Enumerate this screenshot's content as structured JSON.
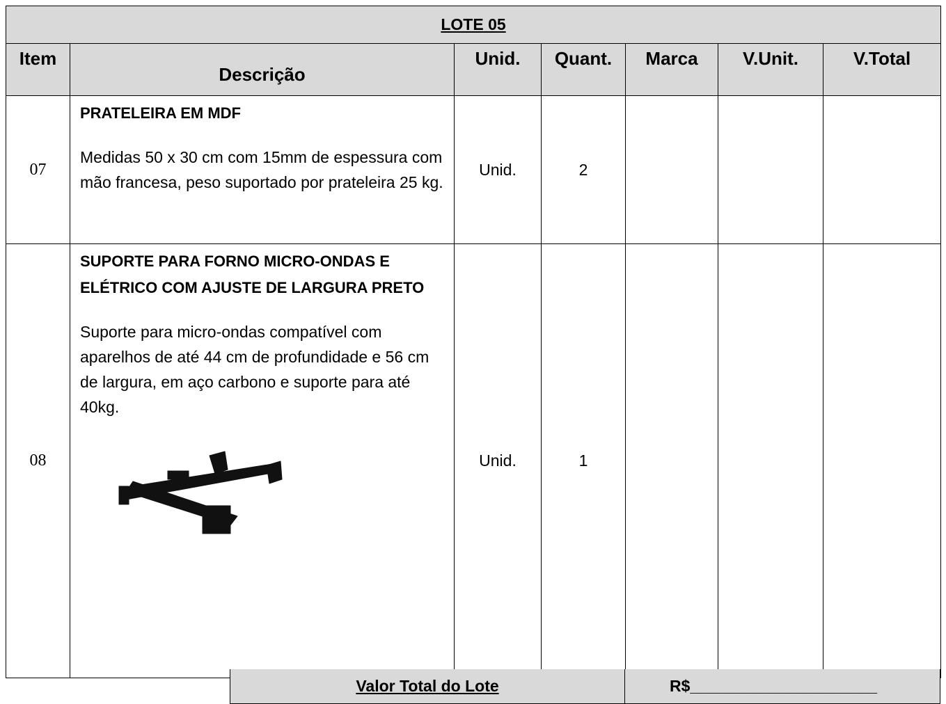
{
  "title": "LOTE 05",
  "headers": [
    "Item",
    "Descrição",
    "Unid.",
    "Quant.",
    "Marca",
    "V.Unit.",
    "V.Total"
  ],
  "rows": [
    {
      "item": "07",
      "name": "PRATELEIRA EM MDF",
      "details": "Medidas 50 x 30 cm com 15mm de espessura com mão francesa, peso suportado por prateleira 25 kg.",
      "unit": "Unid.",
      "quantity": "2"
    },
    {
      "item": "08",
      "name": "SUPORTE PARA FORNO MICRO-ONDAS E ELÉTRICO COM AJUSTE DE LARGURA PRETO",
      "details": "Suporte para micro-ondas compatível com aparelhos de até 44 cm de profundidade e 56 cm de largura, em aço carbono e suporte para até 40kg.",
      "unit": "Unid.",
      "quantity": "1"
    }
  ],
  "footer": {
    "label": "Valor Total do Lote",
    "value": "R$_____________________"
  }
}
